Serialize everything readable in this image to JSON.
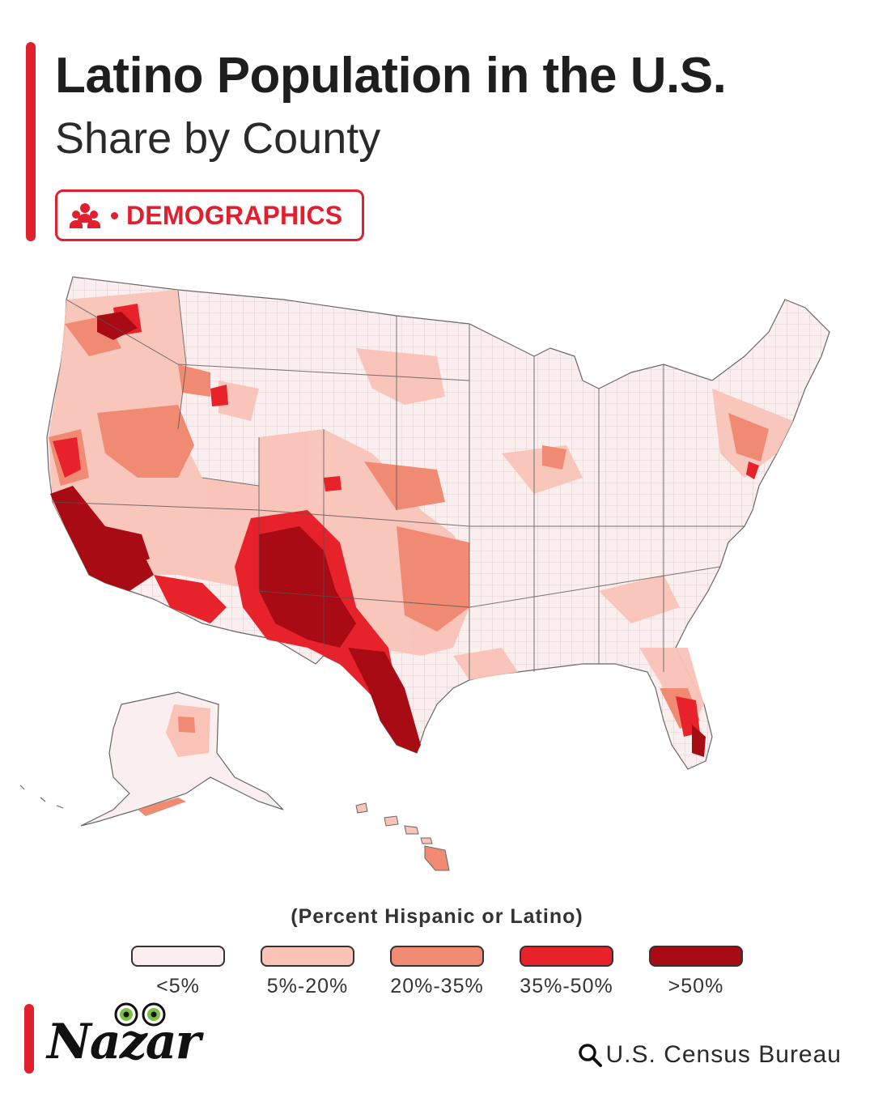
{
  "header": {
    "title": "Latino Population in the U.S.",
    "subtitle": "Share by County",
    "tag_label": "DEMOGRAPHICS",
    "tag_icon": "people-icon"
  },
  "legend": {
    "title": "(Percent Hispanic or Latino)",
    "classes": [
      {
        "label": "<5%",
        "color": "#fbeeee"
      },
      {
        "label": "5%-20%",
        "color": "#f9c3b8"
      },
      {
        "label": "20%-35%",
        "color": "#f08a72"
      },
      {
        "label": "35%-50%",
        "color": "#e8222b"
      },
      {
        "label": ">50%",
        "color": "#a80b13"
      }
    ]
  },
  "footer": {
    "brand": "Nazar",
    "source": "U.S. Census Bureau",
    "source_icon": "search-icon"
  },
  "colors": {
    "accent": "#e0202f",
    "state_border": "#555555"
  }
}
